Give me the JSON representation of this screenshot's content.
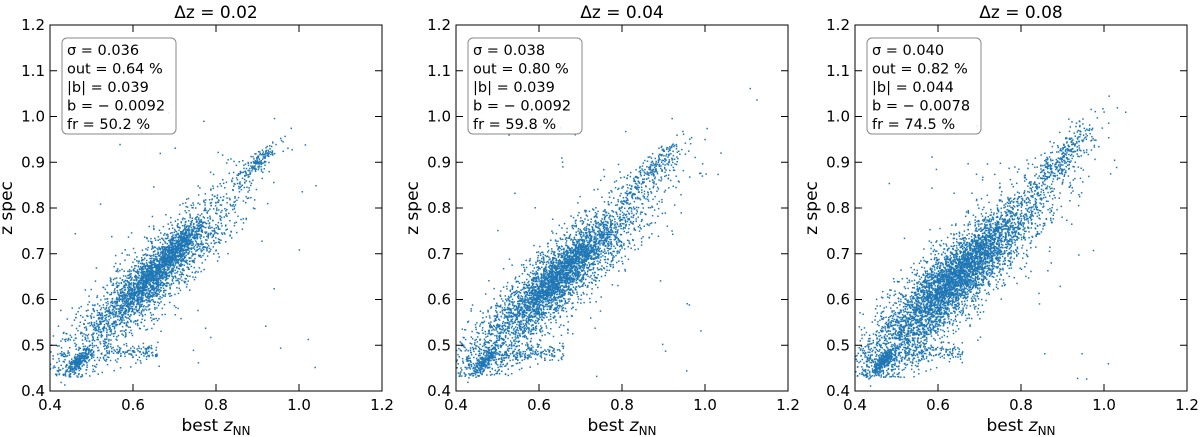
{
  "chart_data": [
    {
      "type": "scatter",
      "title": "Δz = 0.02",
      "xlabel_prefix": "best ",
      "xlabel_var": "z",
      "xlabel_sub": "NN",
      "ylabel": "z spec",
      "xlim": [
        0.4,
        1.2
      ],
      "ylim": [
        0.4,
        1.2
      ],
      "xticks": [
        "0.4",
        "0.6",
        "0.8",
        "1.0",
        "1.2"
      ],
      "yticks": [
        "0.4",
        "0.5",
        "0.6",
        "0.7",
        "0.8",
        "0.9",
        "1.0",
        "1.1",
        "1.2"
      ],
      "stats": [
        "σ = 0.036",
        "out = 0.64 %",
        "|b| = 0.039",
        "b = − 0.0092",
        "fr = 50.2 %"
      ],
      "color": "#1f77b4",
      "n_points": 3800,
      "scatter_sigma": 0.036,
      "clusters": [
        {
          "x": 0.65,
          "y": 0.655,
          "sx": 0.05,
          "sy": 0.03,
          "n": 900
        },
        {
          "x": 0.71,
          "y": 0.715,
          "sx": 0.025,
          "sy": 0.02,
          "n": 350
        },
        {
          "x": 0.47,
          "y": 0.465,
          "sx": 0.015,
          "sy": 0.012,
          "n": 200
        },
        {
          "x": 0.9,
          "y": 0.9,
          "sx": 0.02,
          "sy": 0.015,
          "n": 150
        }
      ]
    },
    {
      "type": "scatter",
      "title": "Δz = 0.04",
      "xlabel_prefix": "best ",
      "xlabel_var": "z",
      "xlabel_sub": "NN",
      "ylabel": "z spec",
      "xlim": [
        0.4,
        1.2
      ],
      "ylim": [
        0.4,
        1.2
      ],
      "xticks": [
        "0.4",
        "0.6",
        "0.8",
        "1.0",
        "1.2"
      ],
      "yticks": [
        "0.4",
        "0.5",
        "0.6",
        "0.7",
        "0.8",
        "0.9",
        "1.0",
        "1.1",
        "1.2"
      ],
      "stats": [
        "σ = 0.038",
        "out = 0.80 %",
        "|b| = 0.039",
        "b = − 0.0092",
        "fr = 59.8 %"
      ],
      "color": "#1f77b4",
      "n_points": 4500,
      "scatter_sigma": 0.038,
      "clusters": [
        {
          "x": 0.65,
          "y": 0.655,
          "sx": 0.05,
          "sy": 0.03,
          "n": 900
        },
        {
          "x": 0.47,
          "y": 0.465,
          "sx": 0.015,
          "sy": 0.012,
          "n": 200
        },
        {
          "x": 0.88,
          "y": 0.89,
          "sx": 0.03,
          "sy": 0.02,
          "n": 200
        }
      ]
    },
    {
      "type": "scatter",
      "title": "Δz = 0.08",
      "xlabel_prefix": "best ",
      "xlabel_var": "z",
      "xlabel_sub": "NN",
      "ylabel": "z spec",
      "xlim": [
        0.4,
        1.2
      ],
      "ylim": [
        0.4,
        1.2
      ],
      "xticks": [
        "0.4",
        "0.6",
        "0.8",
        "1.0",
        "1.2"
      ],
      "yticks": [
        "0.4",
        "0.5",
        "0.6",
        "0.7",
        "0.8",
        "0.9",
        "1.0",
        "1.1",
        "1.2"
      ],
      "stats": [
        "σ = 0.040",
        "out = 0.82 %",
        "|b| = 0.044",
        "b = − 0.0078",
        "fr = 74.5 %"
      ],
      "color": "#1f77b4",
      "n_points": 5600,
      "scatter_sigma": 0.04,
      "clusters": [
        {
          "x": 0.65,
          "y": 0.66,
          "sx": 0.06,
          "sy": 0.035,
          "n": 900
        },
        {
          "x": 0.47,
          "y": 0.465,
          "sx": 0.015,
          "sy": 0.012,
          "n": 250
        },
        {
          "x": 0.9,
          "y": 0.91,
          "sx": 0.04,
          "sy": 0.03,
          "n": 300
        }
      ]
    }
  ]
}
